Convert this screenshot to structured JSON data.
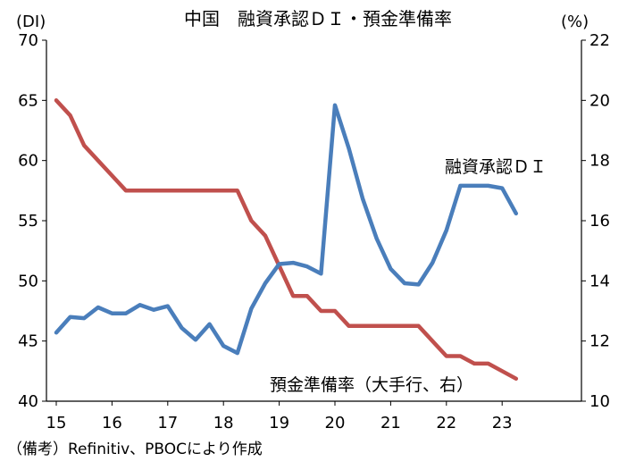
{
  "chart_data": {
    "type": "line",
    "title": "中国　融資承認ＤＩ・預金準備率",
    "left_axis_unit": "(DI)",
    "right_axis_unit": "(%)",
    "x_ticks": [
      "15",
      "16",
      "17",
      "18",
      "19",
      "20",
      "21",
      "22",
      "23"
    ],
    "left_ylim": [
      40,
      70
    ],
    "left_ticks": [
      "40",
      "45",
      "50",
      "55",
      "60",
      "65",
      "70"
    ],
    "right_ylim": [
      10,
      22
    ],
    "right_ticks": [
      "10",
      "12",
      "14",
      "16",
      "18",
      "20",
      "22"
    ],
    "grid": false,
    "colors": {
      "di": "#4a7ebb",
      "rrr": "#c0504d"
    },
    "series": [
      {
        "name": "融資承認ＤＩ",
        "axis": "left",
        "x": [
          2015.0,
          2015.25,
          2015.5,
          2015.75,
          2016.0,
          2016.25,
          2016.5,
          2016.75,
          2017.0,
          2017.25,
          2017.5,
          2017.75,
          2018.0,
          2018.25,
          2018.5,
          2018.75,
          2019.0,
          2019.25,
          2019.5,
          2019.75,
          2020.0,
          2020.25,
          2020.5,
          2020.75,
          2021.0,
          2021.25,
          2021.5,
          2021.75,
          2022.0,
          2022.25,
          2022.5,
          2022.75,
          2023.0,
          2023.25
        ],
        "values": [
          45.7,
          47.0,
          46.9,
          47.8,
          47.3,
          47.3,
          48.0,
          47.6,
          47.9,
          46.1,
          45.1,
          46.4,
          44.6,
          44.0,
          47.7,
          49.8,
          51.4,
          51.5,
          51.2,
          50.6,
          64.6,
          61.0,
          56.8,
          53.5,
          51.0,
          49.8,
          49.7,
          51.5,
          54.2,
          57.9,
          57.9,
          57.9,
          57.7,
          55.6
        ]
      },
      {
        "name": "預金準備率（大手行、右）",
        "axis": "right",
        "x": [
          2015.0,
          2015.25,
          2015.5,
          2015.75,
          2016.0,
          2016.25,
          2016.5,
          2016.75,
          2017.0,
          2017.25,
          2017.5,
          2017.75,
          2018.0,
          2018.25,
          2018.5,
          2018.75,
          2019.0,
          2019.25,
          2019.5,
          2019.75,
          2020.0,
          2020.25,
          2020.5,
          2020.75,
          2021.0,
          2021.25,
          2021.5,
          2021.75,
          2022.0,
          2022.25,
          2022.5,
          2022.75,
          2023.0,
          2023.25
        ],
        "values": [
          20.0,
          19.5,
          18.5,
          18.0,
          17.5,
          17.0,
          17.0,
          17.0,
          17.0,
          17.0,
          17.0,
          17.0,
          17.0,
          17.0,
          16.0,
          15.5,
          14.5,
          13.5,
          13.5,
          13.0,
          13.0,
          12.5,
          12.5,
          12.5,
          12.5,
          12.5,
          12.5,
          12.0,
          11.5,
          11.5,
          11.25,
          11.25,
          11.0,
          10.75
        ]
      }
    ],
    "series_labels": {
      "di": "融資承認ＤＩ",
      "rrr": "預金準備率（大手行、右）"
    }
  },
  "source": "（備考）Refinitiv、PBOCにより作成"
}
